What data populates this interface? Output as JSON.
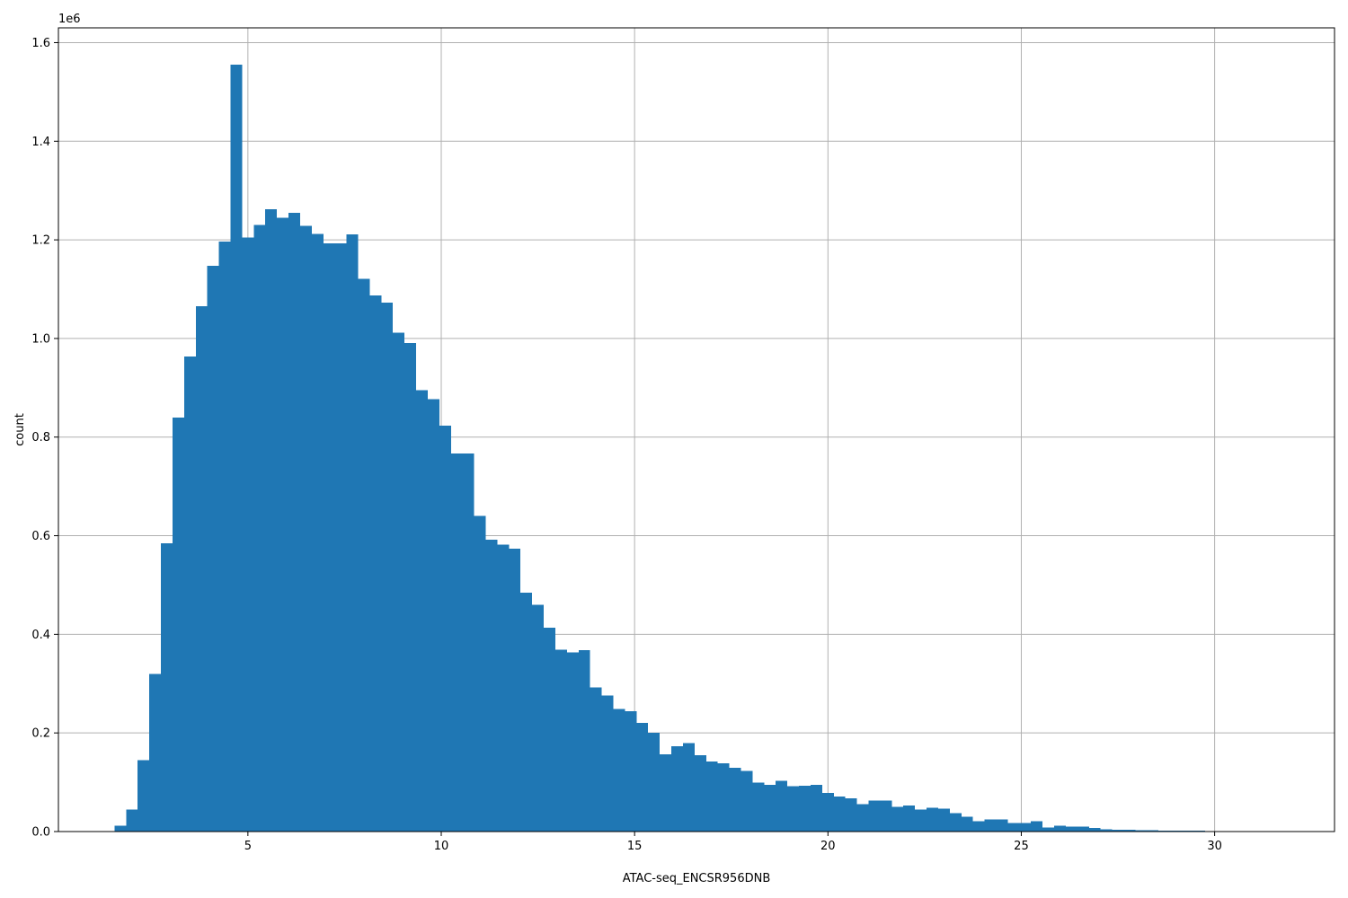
{
  "chart_data": {
    "type": "bar",
    "subtype": "histogram",
    "title": "",
    "xlabel": "ATAC-seq_ENCSR956DNB",
    "ylabel": "count",
    "y_offset_label": "1e6",
    "xlim": [
      0.1,
      33.1
    ],
    "ylim": [
      0,
      1630000
    ],
    "grid": true,
    "bar_color": "#1f77b4",
    "bin_start": 1.25,
    "bin_width": 0.3,
    "x_ticks": [
      5,
      10,
      15,
      20,
      25,
      30
    ],
    "x_tick_labels": [
      "5",
      "10",
      "15",
      "20",
      "25",
      "30"
    ],
    "y_ticks": [
      0,
      200000,
      400000,
      600000,
      800000,
      1000000,
      1200000,
      1400000,
      1600000
    ],
    "y_tick_labels": [
      "0.0",
      "0.2",
      "0.4",
      "0.6",
      "0.8",
      "1.0",
      "1.2",
      "1.4",
      "1.6"
    ],
    "values": [
      0,
      12000,
      45000,
      145000,
      320000,
      585000,
      840000,
      963000,
      1065000,
      1147000,
      1197000,
      1555000,
      1205000,
      1230000,
      1262000,
      1245000,
      1255000,
      1228000,
      1212000,
      1193000,
      1193000,
      1211000,
      1121000,
      1087000,
      1073000,
      1012000,
      991000,
      895000,
      877000,
      823000,
      767000,
      767000,
      640000,
      592000,
      582000,
      574000,
      484000,
      460000,
      413000,
      369000,
      363000,
      368000,
      292000,
      276000,
      249000,
      244000,
      220000,
      200000,
      157000,
      173000,
      179000,
      155000,
      142000,
      138000,
      129000,
      123000,
      99000,
      95000,
      103000,
      92000,
      93000,
      95000,
      78000,
      71000,
      67000,
      56000,
      63000,
      63000,
      50000,
      53000,
      45000,
      48000,
      46000,
      37000,
      30000,
      21000,
      25000,
      25000,
      17000,
      17000,
      21000,
      8000,
      12000,
      10000,
      10000,
      7000,
      5000,
      4000,
      4000,
      3000,
      3000,
      2000,
      2000,
      2000,
      2000,
      1000,
      1000,
      1000,
      500,
      500
    ]
  }
}
